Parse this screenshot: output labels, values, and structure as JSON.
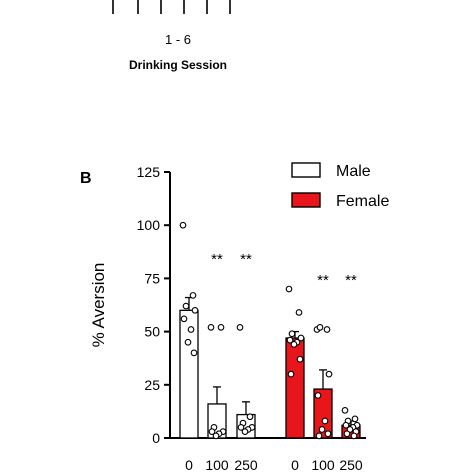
{
  "upper_panel": {
    "session_range": "1 - 6",
    "xlabel": "Drinking Session"
  },
  "chart_data": {
    "type": "bar",
    "panel_label": "B",
    "title": "",
    "xlabel": "",
    "ylabel": "% Aversion",
    "ylim": [
      0,
      125
    ],
    "yticks": [
      0,
      25,
      50,
      75,
      100,
      125
    ],
    "grid": false,
    "legend_position": "top-right",
    "categories": [
      "0",
      "100",
      "250"
    ],
    "colors": {
      "male": "#ffffff",
      "female": "#e8161b",
      "edge": "#000000"
    },
    "series": [
      {
        "name": "Male",
        "values": [
          60,
          16,
          11
        ],
        "sem": [
          6,
          8,
          6
        ],
        "significance": [
          "",
          "**",
          "**"
        ],
        "points": [
          [
            100,
            67,
            62,
            60,
            56,
            51,
            45,
            40
          ],
          [
            52,
            52,
            5,
            3,
            3,
            2,
            1
          ],
          [
            52,
            10,
            7,
            5,
            5,
            4,
            3
          ]
        ]
      },
      {
        "name": "Female",
        "values": [
          47,
          23,
          6
        ],
        "sem": [
          3,
          9,
          2
        ],
        "significance": [
          "",
          "**",
          "**"
        ],
        "points": [
          [
            70,
            59,
            49,
            47,
            46,
            45,
            44,
            37,
            30
          ],
          [
            51,
            51,
            52,
            30,
            20,
            8,
            4,
            2,
            1
          ],
          [
            13,
            9,
            8,
            6,
            6,
            5,
            4,
            3,
            2,
            1
          ]
        ]
      }
    ]
  }
}
